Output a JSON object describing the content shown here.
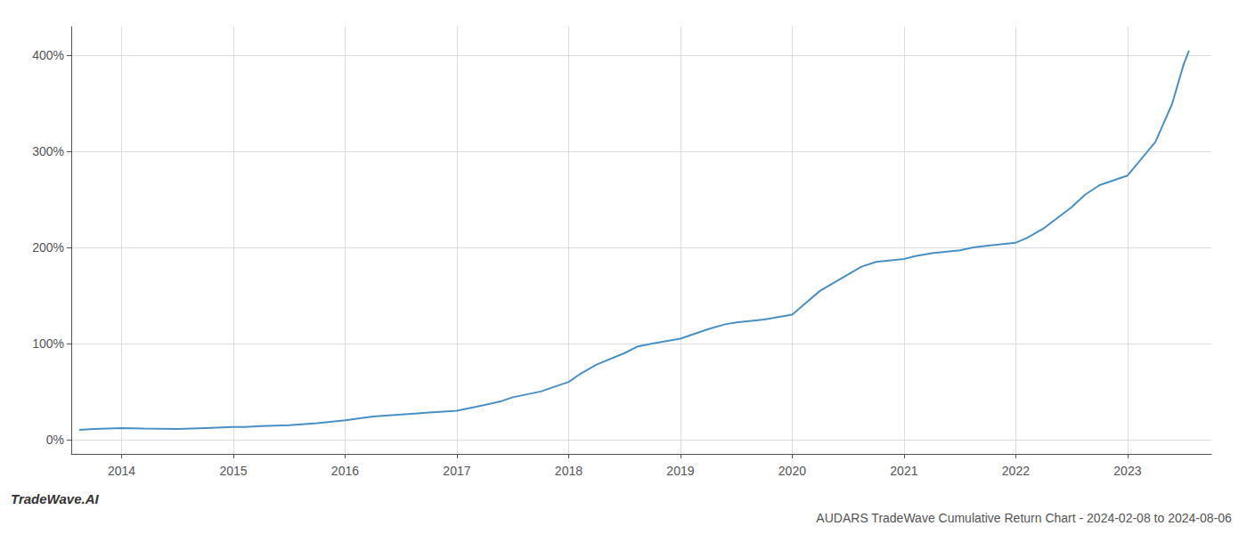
{
  "chart_data": {
    "type": "line",
    "title": "AUDARS TradeWave Cumulative Return Chart - 2024-02-08 to 2024-08-06",
    "annotations": [
      "TradeWave.AI"
    ],
    "color": "#4a90c4",
    "x": [
      2013.62,
      2013.75,
      2014.0,
      2014.2,
      2014.5,
      2014.75,
      2015.0,
      2015.1,
      2015.25,
      2015.5,
      2015.75,
      2016.0,
      2016.25,
      2016.5,
      2016.62,
      2016.75,
      2017.0,
      2017.25,
      2017.4,
      2017.5,
      2017.75,
      2018.0,
      2018.1,
      2018.25,
      2018.5,
      2018.62,
      2018.75,
      2019.0,
      2019.25,
      2019.4,
      2019.5,
      2019.75,
      2020.0,
      2020.1,
      2020.25,
      2020.5,
      2020.62,
      2020.75,
      2021.0,
      2021.1,
      2021.25,
      2021.5,
      2021.62,
      2021.75,
      2022.0,
      2022.1,
      2022.25,
      2022.5,
      2022.62,
      2022.75,
      2023.0,
      2023.25,
      2023.4,
      2023.5,
      2023.55
    ],
    "values": [
      10,
      11,
      12,
      11.5,
      11,
      12,
      13,
      13,
      14,
      15,
      17,
      20,
      24,
      26,
      27,
      28,
      30,
      36,
      40,
      44,
      50,
      60,
      68,
      78,
      90,
      97,
      100,
      105,
      115,
      120,
      122,
      125,
      130,
      140,
      155,
      172,
      180,
      185,
      188,
      191,
      194,
      197,
      200,
      202,
      205,
      210,
      220,
      242,
      255,
      265,
      275,
      310,
      350,
      390,
      405
    ],
    "xlim": [
      2013.55,
      2023.75
    ],
    "xticks": [
      2014,
      2015,
      2016,
      2017,
      2018,
      2019,
      2020,
      2021,
      2022,
      2023
    ],
    "ylim": [
      -15,
      430
    ],
    "yticks": [
      {
        "value": 0,
        "label": "0%"
      },
      {
        "value": 100,
        "label": "100%"
      },
      {
        "value": 200,
        "label": "200%"
      },
      {
        "value": 300,
        "label": "300%"
      },
      {
        "value": 400,
        "label": "400%"
      }
    ],
    "grid": true
  }
}
